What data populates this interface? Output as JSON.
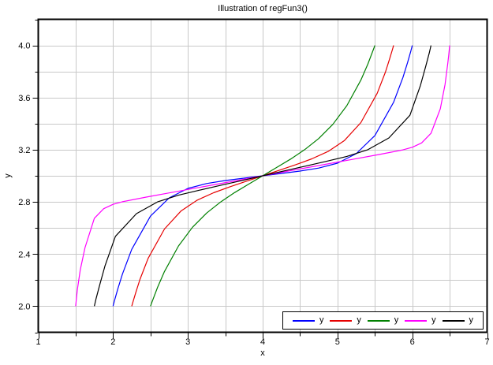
{
  "title": "Illustration of regFun3()",
  "axes": {
    "x": {
      "label": "x",
      "min": 1,
      "max": 7,
      "major_ticks": [
        1,
        2,
        3,
        4,
        5,
        6,
        7
      ],
      "tick_labels": [
        "1",
        "2",
        "3",
        "4",
        "5",
        "6",
        "7"
      ],
      "minor_tick_step": 0.5,
      "grid_step": 0.5
    },
    "y": {
      "label": "y",
      "min": 1.8,
      "max": 4.2,
      "major_ticks": [
        2.0,
        2.4,
        2.8,
        3.2,
        3.6,
        4.0
      ],
      "tick_labels": [
        "2.0",
        "2.4",
        "2.8",
        "3.2",
        "3.6",
        "4.0"
      ],
      "minor_tick_step": 0.2,
      "grid_step": 0.2
    }
  },
  "colors": {
    "background": "#ffffff",
    "frame": "#000000",
    "grid": "#c8c8c8",
    "tick": "#000000"
  },
  "legend": {
    "position": "bottom-right",
    "entries": [
      {
        "label": "y",
        "color": "#0000ff"
      },
      {
        "label": "y",
        "color": "#e60000"
      },
      {
        "label": "y",
        "color": "#008000"
      },
      {
        "label": "y",
        "color": "#ff00ff"
      },
      {
        "label": "y",
        "color": "#000000"
      }
    ]
  },
  "chart_data": {
    "type": "line",
    "title": "Illustration of regFun3()",
    "xlabel": "x",
    "ylabel": "y",
    "xlim": [
      1,
      7
    ],
    "ylim": [
      1.8,
      4.2
    ],
    "grid": true,
    "legend_position": "bottom-right",
    "common_center_point": [
      4.0,
      3.0
    ],
    "series": [
      {
        "name": "y",
        "color": "#0000ff",
        "x_range": [
          2.0,
          6.0
        ],
        "y_range": [
          2.0,
          4.0
        ],
        "points": [
          [
            2.0,
            2.0
          ],
          [
            2.02,
            2.044
          ],
          [
            2.0625,
            2.131
          ],
          [
            2.125,
            2.246
          ],
          [
            2.25,
            2.436
          ],
          [
            2.5,
            2.691
          ],
          [
            2.75,
            2.831
          ],
          [
            3.0,
            2.903
          ],
          [
            3.25,
            2.941
          ],
          [
            3.5,
            2.964
          ],
          [
            3.75,
            2.982
          ],
          [
            4.0,
            3.0
          ],
          [
            4.25,
            3.018
          ],
          [
            4.5,
            3.036
          ],
          [
            4.75,
            3.059
          ],
          [
            5.0,
            3.097
          ],
          [
            5.25,
            3.169
          ],
          [
            5.5,
            3.309
          ],
          [
            5.75,
            3.564
          ],
          [
            5.875,
            3.754
          ],
          [
            5.9375,
            3.869
          ],
          [
            5.98,
            3.956
          ],
          [
            6.0,
            4.0
          ]
        ]
      },
      {
        "name": "y",
        "color": "#e60000",
        "x_range": [
          2.25,
          5.75
        ],
        "y_range": [
          2.0,
          4.0
        ],
        "points": [
          [
            2.25,
            2.0
          ],
          [
            2.2675,
            2.036
          ],
          [
            2.305,
            2.108
          ],
          [
            2.359,
            2.205
          ],
          [
            2.469,
            2.367
          ],
          [
            2.6875,
            2.592
          ],
          [
            2.9065,
            2.729
          ],
          [
            3.125,
            2.813
          ],
          [
            3.344,
            2.87
          ],
          [
            3.5625,
            2.916
          ],
          [
            3.781,
            2.958
          ],
          [
            4.0,
            3.0
          ],
          [
            4.219,
            3.042
          ],
          [
            4.4375,
            3.084
          ],
          [
            4.656,
            3.13
          ],
          [
            4.875,
            3.187
          ],
          [
            5.094,
            3.271
          ],
          [
            5.3125,
            3.408
          ],
          [
            5.531,
            3.633
          ],
          [
            5.641,
            3.795
          ],
          [
            5.695,
            3.892
          ],
          [
            5.7325,
            3.964
          ],
          [
            5.75,
            4.0
          ]
        ]
      },
      {
        "name": "y",
        "color": "#008000",
        "x_range": [
          2.5,
          5.5
        ],
        "y_range": [
          2.0,
          4.0
        ],
        "points": [
          [
            2.5,
            2.0
          ],
          [
            2.515,
            2.024
          ],
          [
            2.594,
            2.144
          ],
          [
            2.6875,
            2.266
          ],
          [
            2.875,
            2.462
          ],
          [
            3.0625,
            2.606
          ],
          [
            3.25,
            2.714
          ],
          [
            3.4375,
            2.799
          ],
          [
            3.625,
            2.871
          ],
          [
            3.8125,
            2.936
          ],
          [
            4.0,
            3.0
          ],
          [
            4.1875,
            3.064
          ],
          [
            4.375,
            3.129
          ],
          [
            4.5625,
            3.201
          ],
          [
            4.75,
            3.286
          ],
          [
            4.9375,
            3.394
          ],
          [
            5.125,
            3.538
          ],
          [
            5.3125,
            3.734
          ],
          [
            5.406,
            3.856
          ],
          [
            5.485,
            3.976
          ],
          [
            5.5,
            4.0
          ]
        ]
      },
      {
        "name": "y",
        "color": "#ff00ff",
        "x_range": [
          1.5,
          6.5
        ],
        "y_range": [
          2.0,
          4.0
        ],
        "points": [
          [
            1.5,
            2.0
          ],
          [
            1.5125,
            2.072
          ],
          [
            1.525,
            2.137
          ],
          [
            1.5625,
            2.28
          ],
          [
            1.625,
            2.45
          ],
          [
            1.75,
            2.674
          ],
          [
            1.875,
            2.748
          ],
          [
            2.0,
            2.781
          ],
          [
            2.125,
            2.801
          ],
          [
            2.4375,
            2.836
          ],
          [
            2.75,
            2.869
          ],
          [
            3.375,
            2.934
          ],
          [
            3.6875,
            2.967
          ],
          [
            4.0,
            3.0
          ],
          [
            4.3125,
            3.033
          ],
          [
            4.625,
            3.066
          ],
          [
            5.25,
            3.131
          ],
          [
            5.5625,
            3.164
          ],
          [
            5.875,
            3.199
          ],
          [
            6.0,
            3.219
          ],
          [
            6.125,
            3.252
          ],
          [
            6.25,
            3.326
          ],
          [
            6.375,
            3.514
          ],
          [
            6.4375,
            3.7
          ],
          [
            6.475,
            3.863
          ],
          [
            6.4875,
            3.928
          ],
          [
            6.5,
            4.0
          ]
        ]
      },
      {
        "name": "y",
        "color": "#000000",
        "x_range": [
          1.75,
          6.25
        ],
        "y_range": [
          2.0,
          4.0
        ],
        "points": [
          [
            1.75,
            2.0
          ],
          [
            1.7725,
            2.058
          ],
          [
            1.8203,
            2.161
          ],
          [
            1.891,
            2.307
          ],
          [
            2.031,
            2.536
          ],
          [
            2.3125,
            2.71
          ],
          [
            2.594,
            2.8
          ],
          [
            2.875,
            2.851
          ],
          [
            3.156,
            2.89
          ],
          [
            3.4375,
            2.927
          ],
          [
            3.719,
            2.963
          ],
          [
            4.0,
            3.0
          ],
          [
            4.281,
            3.037
          ],
          [
            4.5625,
            3.073
          ],
          [
            4.844,
            3.11
          ],
          [
            5.125,
            3.149
          ],
          [
            5.406,
            3.2
          ],
          [
            5.6875,
            3.29
          ],
          [
            5.969,
            3.464
          ],
          [
            6.109,
            3.693
          ],
          [
            6.1797,
            3.839
          ],
          [
            6.2275,
            3.942
          ],
          [
            6.25,
            4.0
          ]
        ]
      }
    ]
  }
}
